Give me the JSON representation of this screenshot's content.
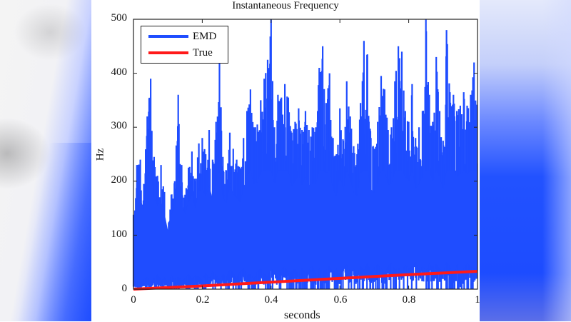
{
  "chart_data": {
    "type": "line",
    "title": "Instantaneous Frequency",
    "xlabel": "seconds",
    "ylabel": "Hz",
    "xlim": [
      0,
      1
    ],
    "ylim": [
      0,
      500
    ],
    "xticks": [
      "0",
      "0.2",
      "0.4",
      "0.6",
      "0.8",
      "1"
    ],
    "yticks": [
      "0",
      "100",
      "200",
      "300",
      "400",
      "500"
    ],
    "grid": false,
    "legend_position": "upper-left",
    "legend": [
      "EMD",
      "True"
    ],
    "series": [
      {
        "name": "EMD",
        "color": "#1f4dff",
        "style": "dense noisy vertical excursions between ~0 and upper envelope",
        "x": [
          0.0,
          0.01,
          0.02,
          0.03,
          0.04,
          0.05,
          0.06,
          0.07,
          0.08,
          0.09,
          0.1,
          0.11,
          0.12,
          0.13,
          0.14,
          0.15,
          0.16,
          0.17,
          0.18,
          0.19,
          0.2,
          0.21,
          0.22,
          0.23,
          0.24,
          0.25,
          0.26,
          0.27,
          0.28,
          0.29,
          0.3,
          0.31,
          0.32,
          0.33,
          0.34,
          0.35,
          0.36,
          0.37,
          0.38,
          0.39,
          0.4,
          0.41,
          0.42,
          0.43,
          0.44,
          0.45,
          0.46,
          0.47,
          0.48,
          0.49,
          0.5,
          0.51,
          0.52,
          0.53,
          0.54,
          0.55,
          0.56,
          0.57,
          0.58,
          0.59,
          0.6,
          0.61,
          0.62,
          0.63,
          0.64,
          0.65,
          0.66,
          0.67,
          0.68,
          0.69,
          0.7,
          0.71,
          0.72,
          0.73,
          0.74,
          0.75,
          0.76,
          0.77,
          0.78,
          0.79,
          0.8,
          0.81,
          0.82,
          0.83,
          0.84,
          0.85,
          0.86,
          0.87,
          0.88,
          0.89,
          0.9,
          0.91,
          0.92,
          0.93,
          0.94,
          0.95,
          0.96,
          0.97,
          0.98,
          0.99,
          1.0
        ],
        "values_upper": [
          138,
          230,
          240,
          195,
          320,
          390,
          245,
          210,
          230,
          180,
          110,
          175,
          200,
          360,
          230,
          175,
          225,
          255,
          200,
          270,
          280,
          250,
          295,
          240,
          310,
          420,
          245,
          220,
          290,
          260,
          240,
          225,
          280,
          330,
          370,
          300,
          305,
          350,
          390,
          425,
          500,
          300,
          360,
          355,
          380,
          355,
          290,
          310,
          335,
          295,
          330,
          295,
          300,
          300,
          410,
          450,
          345,
          400,
          280,
          250,
          335,
          275,
          385,
          320,
          265,
          250,
          345,
          460,
          435,
          280,
          260,
          310,
          395,
          370,
          295,
          300,
          385,
          450,
          440,
          330,
          310,
          380,
          280,
          300,
          330,
          500,
          360,
          310,
          430,
          330,
          275,
          480,
          365,
          360,
          330,
          340,
          365,
          340,
          360,
          420,
          380
        ],
        "values_lower": [
          5,
          8,
          3,
          10,
          15,
          5,
          12,
          20,
          8,
          14,
          5,
          18,
          10,
          15,
          8,
          12,
          20,
          10,
          18,
          15,
          8,
          22,
          12,
          25,
          18,
          10,
          20,
          15,
          28,
          22,
          12,
          25,
          30,
          18,
          20,
          10,
          25,
          30,
          20,
          15,
          30,
          25,
          12,
          28,
          35,
          20,
          25,
          30,
          18,
          32,
          22,
          28,
          35,
          20,
          30,
          25,
          28,
          35,
          22,
          30,
          18,
          32,
          38,
          25,
          30,
          20,
          35,
          28,
          40,
          25,
          32,
          38,
          30,
          22,
          35,
          40,
          28,
          32,
          25,
          38,
          30,
          35,
          42,
          28,
          35,
          25,
          40,
          32,
          38,
          30,
          25,
          42,
          35,
          10,
          38,
          5,
          30,
          40,
          35,
          30,
          33
        ]
      },
      {
        "name": "True",
        "color": "#ff1a1a",
        "style": "solid thick line, approximately linear chirp",
        "x": [
          0,
          0.2,
          0.4,
          0.6,
          0.8,
          1.0
        ],
        "values": [
          0,
          6,
          13,
          20,
          27,
          33
        ]
      }
    ]
  },
  "figure": {
    "title": "Instantaneous Frequency",
    "xlabel": "seconds",
    "ylabel": "Hz",
    "legend": [
      {
        "label": "EMD",
        "color": "#1f4dff"
      },
      {
        "label": "True",
        "color": "#ff1a1a"
      }
    ],
    "xticks": [
      "0",
      "0.2",
      "0.4",
      "0.6",
      "0.8",
      "1"
    ],
    "yticks": [
      "500",
      "400",
      "300",
      "200",
      "100",
      "0"
    ]
  }
}
